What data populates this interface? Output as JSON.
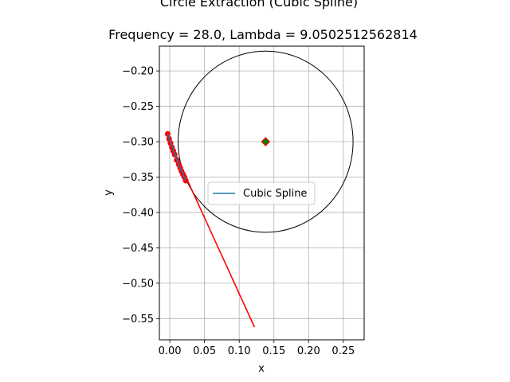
{
  "chart_data": {
    "type": "line",
    "suptitle": "Circle Extraction (Cubic Spline)",
    "title": "Frequency = 28.0, Lambda = 9.0502512562814",
    "xlabel": "x",
    "ylabel": "y",
    "xlim": [
      -0.015,
      0.28
    ],
    "ylim": [
      -0.58,
      -0.165
    ],
    "xticks": [
      0.0,
      0.05,
      0.1,
      0.15,
      0.2,
      0.25
    ],
    "xtick_labels": [
      "0.00",
      "0.05",
      "0.10",
      "0.15",
      "0.20",
      "0.25"
    ],
    "yticks": [
      -0.2,
      -0.25,
      -0.3,
      -0.35,
      -0.4,
      -0.45,
      -0.5,
      -0.55
    ],
    "ytick_labels": [
      "−0.20",
      "−0.25",
      "−0.30",
      "−0.35",
      "−0.40",
      "−0.45",
      "−0.50",
      "−0.55"
    ],
    "grid": true,
    "legend_position": "center",
    "series": [
      {
        "name": "Cubic Spline",
        "kind": "line",
        "color": "#1f77b4",
        "x": [
          -0.003,
          0.0,
          0.003,
          0.006,
          0.009,
          0.012,
          0.015,
          0.018,
          0.021,
          0.023
        ],
        "y": [
          -0.289,
          -0.298,
          -0.306,
          -0.314,
          -0.322,
          -0.33,
          -0.337,
          -0.344,
          -0.35,
          -0.355
        ]
      }
    ],
    "measured_points": {
      "color": "#ff0000",
      "x": [
        -0.003,
        -0.001,
        0.001,
        0.003,
        0.005,
        0.007,
        0.01,
        0.013,
        0.015,
        0.017,
        0.019,
        0.021,
        0.023
      ],
      "y": [
        -0.289,
        -0.296,
        -0.302,
        -0.308,
        -0.313,
        -0.318,
        -0.326,
        -0.332,
        -0.337,
        -0.342,
        -0.346,
        -0.35,
        -0.355
      ]
    },
    "tangent_line": {
      "color": "#ff0000",
      "x": [
        0.0,
        0.122
      ],
      "y": [
        -0.3,
        -0.562
      ]
    },
    "circle": {
      "color": "#000000",
      "center_x": 0.138,
      "center_y": -0.3,
      "radius_x": 0.126,
      "radius_y": 0.128
    },
    "center_marker": {
      "edge_color": "#ff0000",
      "face_color": "#008000",
      "x": 0.138,
      "y": -0.3
    }
  }
}
